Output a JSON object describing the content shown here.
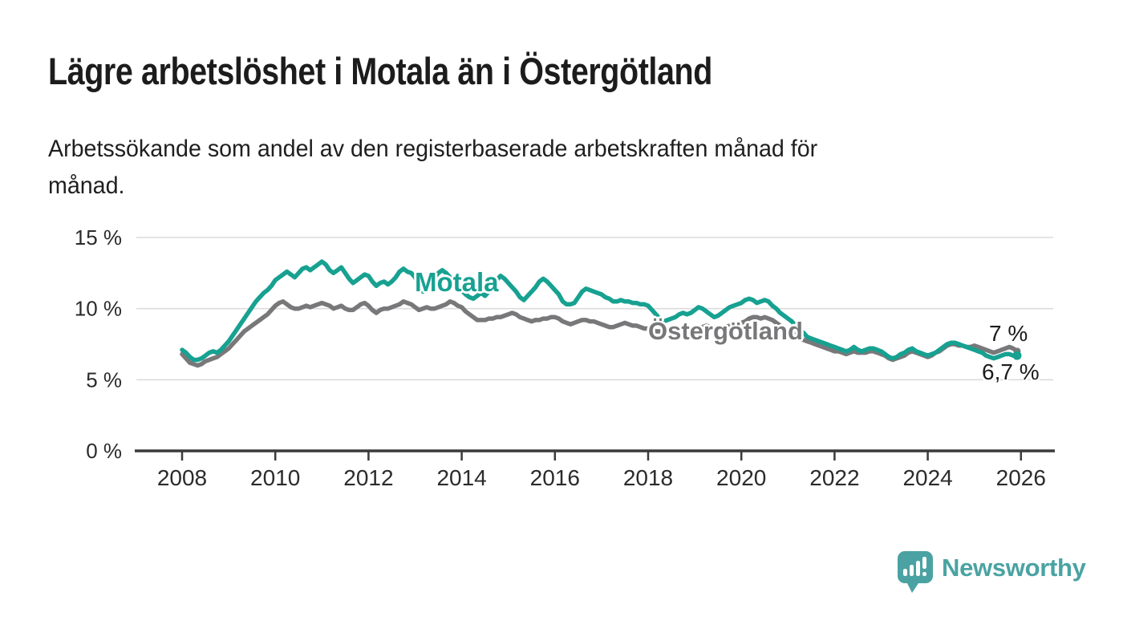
{
  "header": {
    "title": "Lägre arbetslöshet i Motala än i Östergötland",
    "subtitle": "Arbetssökande som andel av den registerbaserade arbetskraften månad för\nmånad."
  },
  "chart_data": {
    "type": "line",
    "title": "Lägre arbetslöshet i Motala än i Östergötland",
    "subtitle": "Arbetssökande som andel av den registerbaserade arbetskraften månad för månad.",
    "unit": "%",
    "frequency": "monthly",
    "x_start": "2008-01",
    "x_end": "2025-12",
    "x_tick_labels": [
      "2008",
      "2010",
      "2012",
      "2014",
      "2016",
      "2018",
      "2020",
      "2022",
      "2024",
      "2026"
    ],
    "y_tick_labels": [
      "0 %",
      "5 %",
      "10 %",
      "15 %"
    ],
    "ylim": [
      0,
      15
    ],
    "grid": "horizontal",
    "legend_position": "inline-labels",
    "axis_color": "#3a3a3a",
    "gridline_color": "#dcdcdc",
    "tick_label_color": "#2b2b2b",
    "series": [
      {
        "name": "Motala",
        "color": "#17a191",
        "end_label": "6,7 %",
        "end_value": 6.7,
        "values": [
          7.1,
          6.9,
          6.6,
          6.4,
          6.4,
          6.5,
          6.7,
          6.9,
          7.0,
          6.9,
          7.1,
          7.4,
          7.7,
          8.1,
          8.5,
          8.9,
          9.3,
          9.7,
          10.1,
          10.5,
          10.8,
          11.1,
          11.3,
          11.6,
          12.0,
          12.2,
          12.4,
          12.6,
          12.4,
          12.2,
          12.5,
          12.8,
          12.9,
          12.7,
          12.9,
          13.1,
          13.3,
          13.1,
          12.7,
          12.5,
          12.7,
          12.9,
          12.5,
          12.1,
          11.8,
          12.0,
          12.2,
          12.4,
          12.3,
          11.9,
          11.6,
          11.8,
          11.9,
          11.7,
          11.9,
          12.2,
          12.6,
          12.8,
          12.6,
          12.5,
          12.2,
          11.6,
          11.2,
          11.5,
          11.9,
          12.2,
          12.5,
          12.7,
          12.5,
          12.2,
          11.9,
          11.6,
          11.3,
          11.0,
          10.8,
          10.7,
          10.9,
          11.1,
          10.9,
          11.2,
          11.6,
          12.0,
          12.3,
          12.1,
          11.8,
          11.5,
          11.2,
          10.8,
          10.6,
          10.9,
          11.2,
          11.5,
          11.9,
          12.1,
          11.9,
          11.6,
          11.3,
          11.0,
          10.5,
          10.3,
          10.3,
          10.4,
          10.8,
          11.2,
          11.4,
          11.3,
          11.2,
          11.1,
          11.0,
          10.8,
          10.7,
          10.5,
          10.5,
          10.6,
          10.5,
          10.5,
          10.4,
          10.4,
          10.3,
          10.3,
          10.2,
          9.9,
          9.6,
          9.3,
          9.1,
          9.2,
          9.3,
          9.4,
          9.6,
          9.7,
          9.6,
          9.7,
          9.9,
          10.1,
          10.0,
          9.8,
          9.6,
          9.4,
          9.5,
          9.7,
          9.9,
          10.1,
          10.2,
          10.3,
          10.4,
          10.6,
          10.7,
          10.6,
          10.4,
          10.5,
          10.6,
          10.5,
          10.2,
          10.0,
          9.7,
          9.5,
          9.3,
          9.1,
          8.8,
          8.5,
          8.3,
          8.0,
          7.9,
          7.8,
          7.7,
          7.6,
          7.5,
          7.4,
          7.3,
          7.2,
          7.1,
          7.0,
          7.1,
          7.3,
          7.1,
          7.0,
          7.1,
          7.2,
          7.2,
          7.1,
          7.0,
          6.8,
          6.6,
          6.5,
          6.6,
          6.8,
          6.9,
          7.1,
          7.2,
          7.0,
          6.9,
          6.8,
          6.7,
          6.8,
          6.9,
          7.1,
          7.3,
          7.5,
          7.6,
          7.6,
          7.5,
          7.4,
          7.3,
          7.2,
          7.1,
          7.0,
          6.9,
          6.7,
          6.6,
          6.5,
          6.6,
          6.7,
          6.8,
          6.8,
          6.7,
          6.7
        ]
      },
      {
        "name": "Östergötland",
        "color": "#78787a",
        "end_label": "7 %",
        "end_value": 7.0,
        "values": [
          6.8,
          6.5,
          6.2,
          6.1,
          6.0,
          6.1,
          6.3,
          6.4,
          6.5,
          6.6,
          6.8,
          7.0,
          7.2,
          7.5,
          7.8,
          8.1,
          8.4,
          8.6,
          8.8,
          9.0,
          9.2,
          9.4,
          9.6,
          9.9,
          10.2,
          10.4,
          10.5,
          10.3,
          10.1,
          10.0,
          10.0,
          10.1,
          10.2,
          10.1,
          10.2,
          10.3,
          10.4,
          10.3,
          10.2,
          10.0,
          10.1,
          10.2,
          10.0,
          9.9,
          9.9,
          10.1,
          10.3,
          10.4,
          10.2,
          9.9,
          9.7,
          9.9,
          10.0,
          10.0,
          10.1,
          10.2,
          10.3,
          10.5,
          10.4,
          10.3,
          10.1,
          9.9,
          10.0,
          10.1,
          10.0,
          10.0,
          10.1,
          10.2,
          10.3,
          10.5,
          10.4,
          10.2,
          10.1,
          9.8,
          9.6,
          9.4,
          9.2,
          9.2,
          9.2,
          9.3,
          9.3,
          9.4,
          9.4,
          9.5,
          9.6,
          9.7,
          9.6,
          9.4,
          9.3,
          9.2,
          9.1,
          9.2,
          9.2,
          9.3,
          9.3,
          9.4,
          9.4,
          9.3,
          9.1,
          9.0,
          8.9,
          9.0,
          9.1,
          9.2,
          9.2,
          9.1,
          9.1,
          9.0,
          8.9,
          8.8,
          8.7,
          8.7,
          8.8,
          8.9,
          9.0,
          8.9,
          8.8,
          8.8,
          8.7,
          8.6,
          8.6,
          8.5,
          8.4,
          8.4,
          8.3,
          8.4,
          8.4,
          8.5,
          8.6,
          8.5,
          8.5,
          8.5,
          8.6,
          8.6,
          8.7,
          8.8,
          8.7,
          8.6,
          8.6,
          8.6,
          8.7,
          8.8,
          8.8,
          8.9,
          9.0,
          9.1,
          9.3,
          9.4,
          9.4,
          9.3,
          9.4,
          9.3,
          9.2,
          9.0,
          8.8,
          8.6,
          8.4,
          8.3,
          8.1,
          8.0,
          7.8,
          7.7,
          7.6,
          7.5,
          7.4,
          7.3,
          7.2,
          7.1,
          7.0,
          7.0,
          6.9,
          6.8,
          6.9,
          7.0,
          6.9,
          6.9,
          6.9,
          7.0,
          7.0,
          6.9,
          6.8,
          6.7,
          6.5,
          6.4,
          6.5,
          6.6,
          6.7,
          6.9,
          7.0,
          6.9,
          6.8,
          6.7,
          6.6,
          6.7,
          6.9,
          7.0,
          7.2,
          7.4,
          7.5,
          7.5,
          7.4,
          7.4,
          7.3,
          7.3,
          7.4,
          7.3,
          7.2,
          7.1,
          7.0,
          6.9,
          7.0,
          7.1,
          7.2,
          7.3,
          7.2,
          7.0
        ]
      }
    ]
  },
  "footer": {
    "brand": "Newsworthy",
    "brand_color": "#4aa3a2"
  }
}
